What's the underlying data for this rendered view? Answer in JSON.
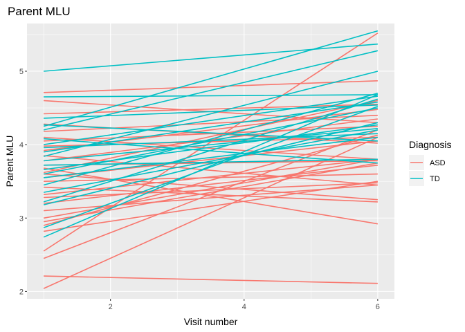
{
  "chart_data": {
    "type": "line",
    "title": "Parent MLU",
    "xlabel": "Visit number",
    "ylabel": "Parent MLU",
    "xlim": [
      0.75,
      6.25
    ],
    "ylim": [
      1.9,
      5.65
    ],
    "x_ticks": [
      2,
      4,
      6
    ],
    "x_tick_labels": [
      "2",
      "4",
      "6"
    ],
    "y_ticks": [
      2,
      3,
      4,
      5
    ],
    "y_tick_labels": [
      "2",
      "3",
      "4",
      "5"
    ],
    "grid": true,
    "legend": {
      "title": "Diagnosis",
      "placement": "right",
      "entries": [
        {
          "label": "ASD",
          "color": "#F8766D"
        },
        {
          "label": "TD",
          "color": "#00BFC4"
        }
      ]
    },
    "series": [
      {
        "group": "ASD",
        "color": "#F8766D",
        "x": [
          1,
          6
        ],
        "y": [
          2.04,
          4.1
        ]
      },
      {
        "group": "ASD",
        "color": "#F8766D",
        "x": [
          1,
          6
        ],
        "y": [
          2.21,
          2.11
        ]
      },
      {
        "group": "ASD",
        "color": "#F8766D",
        "x": [
          1,
          6
        ],
        "y": [
          2.45,
          4.2
        ]
      },
      {
        "group": "ASD",
        "color": "#F8766D",
        "x": [
          1,
          6
        ],
        "y": [
          2.55,
          5.52
        ]
      },
      {
        "group": "ASD",
        "color": "#F8766D",
        "x": [
          1,
          6
        ],
        "y": [
          2.82,
          3.5
        ]
      },
      {
        "group": "ASD",
        "color": "#F8766D",
        "x": [
          1,
          6
        ],
        "y": [
          2.9,
          4.13
        ]
      },
      {
        "group": "ASD",
        "color": "#F8766D",
        "x": [
          1,
          6
        ],
        "y": [
          2.95,
          3.75
        ]
      },
      {
        "group": "ASD",
        "color": "#F8766D",
        "x": [
          1,
          6
        ],
        "y": [
          3.0,
          3.8
        ]
      },
      {
        "group": "ASD",
        "color": "#F8766D",
        "x": [
          1,
          6
        ],
        "y": [
          3.1,
          3.45
        ]
      },
      {
        "group": "ASD",
        "color": "#F8766D",
        "x": [
          1,
          6
        ],
        "y": [
          3.2,
          3.72
        ]
      },
      {
        "group": "ASD",
        "color": "#F8766D",
        "x": [
          1,
          6
        ],
        "y": [
          3.28,
          3.48
        ]
      },
      {
        "group": "ASD",
        "color": "#F8766D",
        "x": [
          1,
          6
        ],
        "y": [
          3.32,
          3.8
        ]
      },
      {
        "group": "ASD",
        "color": "#F8766D",
        "x": [
          1,
          6
        ],
        "y": [
          3.42,
          3.22
        ]
      },
      {
        "group": "ASD",
        "color": "#F8766D",
        "x": [
          1,
          6
        ],
        "y": [
          3.5,
          3.6
        ]
      },
      {
        "group": "ASD",
        "color": "#F8766D",
        "x": [
          1,
          6
        ],
        "y": [
          3.55,
          4.05
        ]
      },
      {
        "group": "ASD",
        "color": "#F8766D",
        "x": [
          1,
          6
        ],
        "y": [
          3.6,
          3.25
        ]
      },
      {
        "group": "ASD",
        "color": "#F8766D",
        "x": [
          1,
          6
        ],
        "y": [
          3.62,
          4.6
        ]
      },
      {
        "group": "ASD",
        "color": "#F8766D",
        "x": [
          1,
          6
        ],
        "y": [
          3.68,
          2.92
        ]
      },
      {
        "group": "ASD",
        "color": "#F8766D",
        "x": [
          1,
          6
        ],
        "y": [
          3.72,
          3.78
        ]
      },
      {
        "group": "ASD",
        "color": "#F8766D",
        "x": [
          1,
          6
        ],
        "y": [
          3.78,
          4.35
        ]
      },
      {
        "group": "ASD",
        "color": "#F8766D",
        "x": [
          1,
          6
        ],
        "y": [
          3.85,
          3.45
        ]
      },
      {
        "group": "ASD",
        "color": "#F8766D",
        "x": [
          1,
          6
        ],
        "y": [
          3.92,
          4.48
        ]
      },
      {
        "group": "ASD",
        "color": "#F8766D",
        "x": [
          1,
          6
        ],
        "y": [
          3.98,
          4.1
        ]
      },
      {
        "group": "ASD",
        "color": "#F8766D",
        "x": [
          1,
          6
        ],
        "y": [
          4.05,
          4.25
        ]
      },
      {
        "group": "ASD",
        "color": "#F8766D",
        "x": [
          1,
          6
        ],
        "y": [
          4.1,
          3.8
        ]
      },
      {
        "group": "ASD",
        "color": "#F8766D",
        "x": [
          1,
          6
        ],
        "y": [
          4.18,
          4.4
        ]
      },
      {
        "group": "ASD",
        "color": "#F8766D",
        "x": [
          1,
          6
        ],
        "y": [
          4.28,
          4.02
        ]
      },
      {
        "group": "ASD",
        "color": "#F8766D",
        "x": [
          1,
          6
        ],
        "y": [
          4.42,
          4.55
        ]
      },
      {
        "group": "ASD",
        "color": "#F8766D",
        "x": [
          1,
          6
        ],
        "y": [
          4.6,
          4.3
        ]
      },
      {
        "group": "ASD",
        "color": "#F8766D",
        "x": [
          1,
          6
        ],
        "y": [
          4.71,
          4.87
        ]
      },
      {
        "group": "TD",
        "color": "#00BFC4",
        "x": [
          1,
          6
        ],
        "y": [
          2.74,
          4.68
        ]
      },
      {
        "group": "TD",
        "color": "#00BFC4",
        "x": [
          1,
          6
        ],
        "y": [
          2.87,
          4.52
        ]
      },
      {
        "group": "TD",
        "color": "#00BFC4",
        "x": [
          1,
          6
        ],
        "y": [
          3.18,
          4.3
        ]
      },
      {
        "group": "TD",
        "color": "#00BFC4",
        "x": [
          1,
          6
        ],
        "y": [
          3.22,
          4.62
        ]
      },
      {
        "group": "TD",
        "color": "#00BFC4",
        "x": [
          1,
          6
        ],
        "y": [
          3.35,
          4.2
        ]
      },
      {
        "group": "TD",
        "color": "#00BFC4",
        "x": [
          1,
          6
        ],
        "y": [
          3.45,
          4.7
        ]
      },
      {
        "group": "TD",
        "color": "#00BFC4",
        "x": [
          1,
          6
        ],
        "y": [
          3.55,
          4.1
        ]
      },
      {
        "group": "TD",
        "color": "#00BFC4",
        "x": [
          1,
          6
        ],
        "y": [
          3.6,
          4.5
        ]
      },
      {
        "group": "TD",
        "color": "#00BFC4",
        "x": [
          1,
          6
        ],
        "y": [
          3.66,
          4.27
        ]
      },
      {
        "group": "TD",
        "color": "#00BFC4",
        "x": [
          1,
          6
        ],
        "y": [
          3.72,
          3.8
        ]
      },
      {
        "group": "TD",
        "color": "#00BFC4",
        "x": [
          1,
          6
        ],
        "y": [
          3.78,
          4.22
        ]
      },
      {
        "group": "TD",
        "color": "#00BFC4",
        "x": [
          1,
          6
        ],
        "y": [
          3.84,
          5.0
        ]
      },
      {
        "group": "TD",
        "color": "#00BFC4",
        "x": [
          1,
          6
        ],
        "y": [
          3.9,
          4.58
        ]
      },
      {
        "group": "TD",
        "color": "#00BFC4",
        "x": [
          1,
          6
        ],
        "y": [
          3.96,
          4.15
        ]
      },
      {
        "group": "TD",
        "color": "#00BFC4",
        "x": [
          1,
          6
        ],
        "y": [
          4.0,
          4.66
        ]
      },
      {
        "group": "TD",
        "color": "#00BFC4",
        "x": [
          1,
          6
        ],
        "y": [
          4.08,
          3.75
        ]
      },
      {
        "group": "TD",
        "color": "#00BFC4",
        "x": [
          1,
          6
        ],
        "y": [
          4.2,
          5.28
        ]
      },
      {
        "group": "TD",
        "color": "#00BFC4",
        "x": [
          1,
          6
        ],
        "y": [
          4.25,
          5.55
        ]
      },
      {
        "group": "TD",
        "color": "#00BFC4",
        "x": [
          1,
          6
        ],
        "y": [
          4.27,
          4.05
        ]
      },
      {
        "group": "TD",
        "color": "#00BFC4",
        "x": [
          1,
          6
        ],
        "y": [
          4.36,
          4.54
        ]
      },
      {
        "group": "TD",
        "color": "#00BFC4",
        "x": [
          1,
          6
        ],
        "y": [
          4.65,
          4.68
        ]
      },
      {
        "group": "TD",
        "color": "#00BFC4",
        "x": [
          1,
          6
        ],
        "y": [
          5.0,
          5.37
        ]
      }
    ]
  }
}
